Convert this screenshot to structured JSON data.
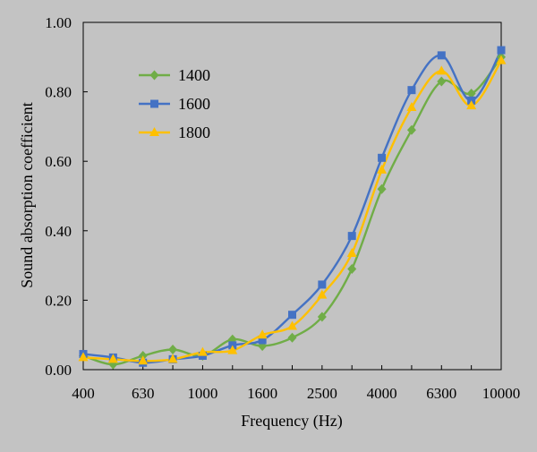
{
  "chart_data": {
    "type": "line",
    "xlabel": "Frequency (Hz)",
    "ylabel": "Sound absorption coefficient",
    "x": [
      400,
      500,
      630,
      800,
      1000,
      1250,
      1600,
      2000,
      2500,
      3150,
      4000,
      5000,
      6300,
      8000,
      10000
    ],
    "x_tick_labels": [
      "400",
      "630",
      "1000",
      "1600",
      "2500",
      "4000",
      "6300",
      "10000"
    ],
    "y_tick_labels": [
      "0.00",
      "0.20",
      "0.40",
      "0.60",
      "0.80",
      "1.00"
    ],
    "ylim": [
      0,
      1
    ],
    "legend_position": "upper-left",
    "grid": false,
    "series": [
      {
        "name": "1400",
        "color": "#70ad47",
        "marker": "diamond",
        "values": [
          0.04,
          0.015,
          0.04,
          0.058,
          0.04,
          0.087,
          0.068,
          0.092,
          0.152,
          0.29,
          0.52,
          0.69,
          0.83,
          0.795,
          0.9
        ]
      },
      {
        "name": "1600",
        "color": "#4472c4",
        "marker": "square",
        "values": [
          0.045,
          0.035,
          0.02,
          0.03,
          0.04,
          0.07,
          0.085,
          0.158,
          0.245,
          0.385,
          0.61,
          0.805,
          0.905,
          0.775,
          0.92
        ]
      },
      {
        "name": "1800",
        "color": "#ffc000",
        "marker": "triangle",
        "values": [
          0.035,
          0.03,
          0.025,
          0.03,
          0.05,
          0.055,
          0.1,
          0.125,
          0.215,
          0.335,
          0.575,
          0.755,
          0.86,
          0.76,
          0.89
        ]
      }
    ]
  }
}
